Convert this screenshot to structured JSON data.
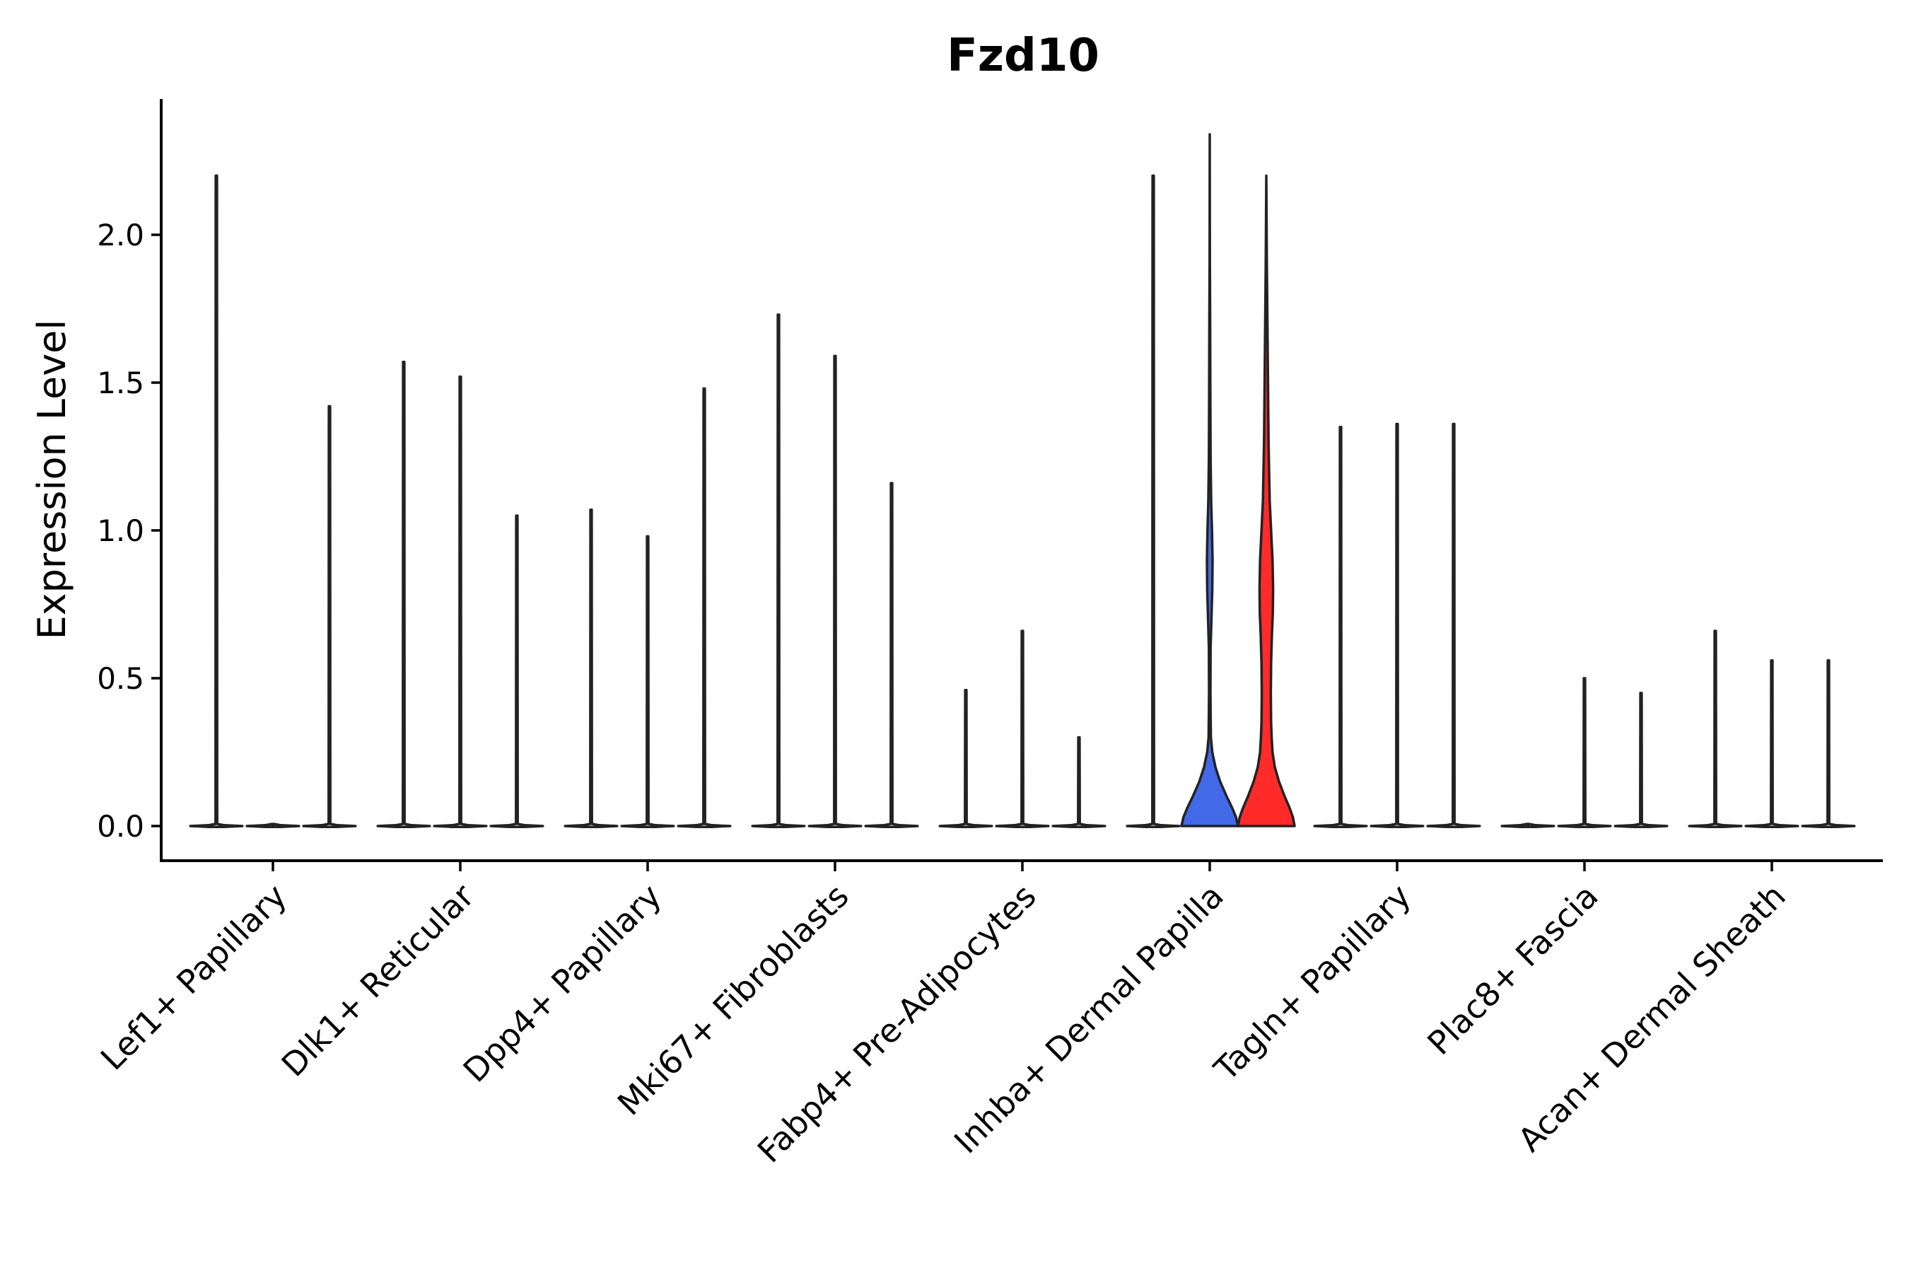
{
  "chart_data": {
    "type": "violin",
    "title": "Fzd10",
    "xlabel": "",
    "ylabel": "Expression Level",
    "ylim": [
      -0.12,
      2.45
    ],
    "yticks": [
      "0.0",
      "0.5",
      "1.0",
      "1.5",
      "2.0"
    ],
    "grid": false,
    "legend": "none",
    "categories": [
      "Lef1+ Papillary",
      "Dlk1+ Reticular",
      "Dpp4+ Papillary",
      "Mki67+ Fibroblasts",
      "Fabp4+ Pre-Adipocytes",
      "Inhba+ Dermal Papilla",
      "Tagln+ Papillary",
      "Plac8+ Fascia",
      "Acan+ Dermal Sheath"
    ],
    "groups_per_category": 3,
    "violins": [
      {
        "category": 0,
        "slot": 0,
        "max": 2.2,
        "fill": "none",
        "profile": []
      },
      {
        "category": 0,
        "slot": 1,
        "max": 0.0,
        "fill": "none",
        "profile": []
      },
      {
        "category": 0,
        "slot": 2,
        "max": 1.42,
        "fill": "none",
        "profile": []
      },
      {
        "category": 1,
        "slot": 0,
        "max": 1.57,
        "fill": "none",
        "profile": []
      },
      {
        "category": 1,
        "slot": 1,
        "max": 1.52,
        "fill": "none",
        "profile": []
      },
      {
        "category": 1,
        "slot": 2,
        "max": 1.05,
        "fill": "none",
        "profile": []
      },
      {
        "category": 2,
        "slot": 0,
        "max": 1.07,
        "fill": "none",
        "profile": []
      },
      {
        "category": 2,
        "slot": 1,
        "max": 0.98,
        "fill": "none",
        "profile": []
      },
      {
        "category": 2,
        "slot": 2,
        "max": 1.48,
        "fill": "none",
        "profile": []
      },
      {
        "category": 3,
        "slot": 0,
        "max": 1.73,
        "fill": "none",
        "profile": []
      },
      {
        "category": 3,
        "slot": 1,
        "max": 1.59,
        "fill": "none",
        "profile": []
      },
      {
        "category": 3,
        "slot": 2,
        "max": 1.16,
        "fill": "none",
        "profile": []
      },
      {
        "category": 4,
        "slot": 0,
        "max": 0.46,
        "fill": "none",
        "profile": []
      },
      {
        "category": 4,
        "slot": 1,
        "max": 0.66,
        "fill": "none",
        "profile": []
      },
      {
        "category": 4,
        "slot": 2,
        "max": 0.3,
        "fill": "none",
        "profile": []
      },
      {
        "category": 5,
        "slot": 0,
        "max": 2.2,
        "fill": "none",
        "profile": []
      },
      {
        "category": 5,
        "slot": 1,
        "max": 2.34,
        "fill": "#4169e8",
        "profile": [
          [
            0.0,
            1.0
          ],
          [
            0.03,
            0.93
          ],
          [
            0.06,
            0.8
          ],
          [
            0.1,
            0.6
          ],
          [
            0.15,
            0.37
          ],
          [
            0.2,
            0.2
          ],
          [
            0.25,
            0.09
          ],
          [
            0.3,
            0.04
          ],
          [
            0.45,
            0.025
          ],
          [
            0.6,
            0.03
          ],
          [
            0.7,
            0.06
          ],
          [
            0.8,
            0.09
          ],
          [
            0.9,
            0.1
          ],
          [
            1.0,
            0.08
          ],
          [
            1.1,
            0.05
          ],
          [
            1.25,
            0.03
          ],
          [
            1.5,
            0.02
          ],
          [
            1.7,
            0.015
          ],
          [
            1.9,
            0.006
          ],
          [
            2.34,
            0.0
          ]
        ]
      },
      {
        "category": 5,
        "slot": 2,
        "max": 2.2,
        "fill": "#ff2a2a",
        "profile": [
          [
            0.0,
            1.0
          ],
          [
            0.03,
            0.94
          ],
          [
            0.06,
            0.83
          ],
          [
            0.1,
            0.65
          ],
          [
            0.15,
            0.45
          ],
          [
            0.2,
            0.3
          ],
          [
            0.25,
            0.22
          ],
          [
            0.3,
            0.19
          ],
          [
            0.35,
            0.17
          ],
          [
            0.45,
            0.16
          ],
          [
            0.55,
            0.17
          ],
          [
            0.65,
            0.2
          ],
          [
            0.72,
            0.23
          ],
          [
            0.8,
            0.24
          ],
          [
            0.9,
            0.22
          ],
          [
            1.0,
            0.17
          ],
          [
            1.1,
            0.12
          ],
          [
            1.3,
            0.08
          ],
          [
            1.5,
            0.06
          ],
          [
            1.7,
            0.04
          ],
          [
            1.9,
            0.02
          ],
          [
            2.2,
            0.0
          ]
        ]
      },
      {
        "category": 6,
        "slot": 0,
        "max": 1.35,
        "fill": "none",
        "profile": []
      },
      {
        "category": 6,
        "slot": 1,
        "max": 1.36,
        "fill": "none",
        "profile": []
      },
      {
        "category": 6,
        "slot": 2,
        "max": 1.36,
        "fill": "none",
        "profile": []
      },
      {
        "category": 7,
        "slot": 0,
        "max": 0.0,
        "fill": "none",
        "profile": []
      },
      {
        "category": 7,
        "slot": 1,
        "max": 0.5,
        "fill": "none",
        "profile": []
      },
      {
        "category": 7,
        "slot": 2,
        "max": 0.45,
        "fill": "none",
        "profile": []
      },
      {
        "category": 8,
        "slot": 0,
        "max": 0.66,
        "fill": "none",
        "profile": []
      },
      {
        "category": 8,
        "slot": 1,
        "max": 0.56,
        "fill": "none",
        "profile": []
      },
      {
        "category": 8,
        "slot": 2,
        "max": 0.56,
        "fill": "none",
        "profile": []
      }
    ]
  }
}
